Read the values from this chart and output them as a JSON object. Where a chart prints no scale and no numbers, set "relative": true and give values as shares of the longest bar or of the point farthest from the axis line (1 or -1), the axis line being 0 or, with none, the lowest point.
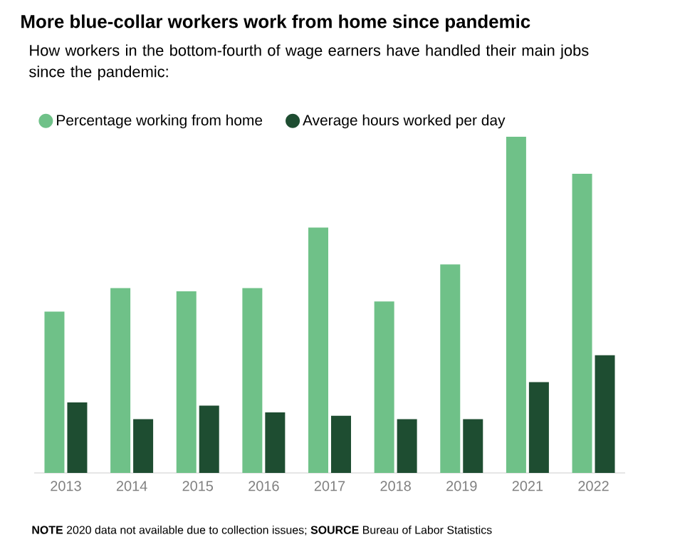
{
  "chart_data": {
    "type": "bar",
    "title": "More blue-collar workers work from home since pandemic",
    "subtitle": "How workers in the bottom-fourth of wage earners have handled their main jobs since the pandemic:",
    "categories": [
      "2013",
      "2014",
      "2015",
      "2016",
      "2017",
      "2018",
      "2019",
      "2021",
      "2022"
    ],
    "relative": true,
    "legend": "top left",
    "series": [
      {
        "name": "Percentage working from home",
        "color": "#6fc188",
        "values": [
          0.48,
          0.55,
          0.54,
          0.55,
          0.73,
          0.51,
          0.62,
          1,
          0.89
        ]
      },
      {
        "name": "Average hours worked per day",
        "color": "#1e4d31",
        "values": [
          0.21,
          0.16,
          0.2,
          0.18,
          0.17,
          0.16,
          0.16,
          0.27,
          0.35
        ]
      }
    ],
    "annotations": [
      "**NOTE** 2020 data not available due to collection issues; **SOURCE** Bureau of Labor Statistics"
    ]
  }
}
